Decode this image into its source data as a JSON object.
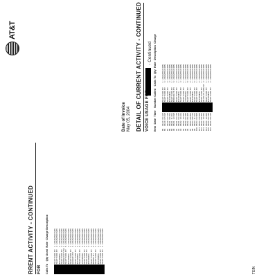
{
  "brand": {
    "name": "AT&T"
  },
  "invoice": {
    "date_label": "Date of Invoice",
    "date_value": "May 05, 2004"
  },
  "customer": {
    "name_fragment": "TEIN"
  },
  "sections": {
    "left_title": "RRENT ACTIVITY - CONTINUED",
    "right_title": "DETAIL OF CURRENT ACTIVITY - CONTINUED",
    "voice_title": "VOICE USAGE FOR",
    "continued": "- Continued",
    "voice_left_fragment": "FOR"
  },
  "headers": {
    "calls_to": "Calls To",
    "qty": "Qty",
    "used": "Used",
    "rate": "Rate",
    "charge": "Charge",
    "description": "Description",
    "item": "Item",
    "date": "Date",
    "time": "Time",
    "number_called": "Number Called"
  },
  "right_rows": [
    [
      "85",
      "04/30",
      "06:32P",
      "NEW YORK NY",
      "1",
      "UNLIMITED MIN"
    ],
    [
      "86",
      "04/30",
      "07:01P",
      "NEW YORK NY",
      "4",
      "UNLIMITED MIN"
    ],
    [
      "87",
      "04/30",
      "07:12P",
      "NEW YORK NY",
      "2",
      "UNLIMITED MIN"
    ],
    [
      "88",
      "05/01",
      "09:15A",
      "INCOMING",
      "3",
      "UNLIMITED MIN"
    ],
    [
      "89",
      "05/01",
      "11:40A",
      "NEW YORK NY",
      "1",
      "UNLIMITED MIN"
    ],
    [
      "90",
      "05/01",
      "12:03P",
      "BROOKLYN NY",
      "6",
      "UNLIMITED MIN"
    ],
    [
      "91",
      "05/01",
      "01:27P",
      "NEW YORK NY",
      "2",
      "UNLIMITED MIN"
    ],
    [
      "92",
      "05/01",
      "03:10P",
      "INCOMING",
      "1",
      "UNLIMITED MIN"
    ],
    [
      "93",
      "05/02",
      "10:22A",
      "NEW YORK NY",
      "3",
      "UNLIMITED MIN"
    ],
    [
      "94",
      "05/02",
      "12:45P",
      "NEW YORK NY",
      "1",
      "UNLIMITED MIN"
    ],
    [
      "95",
      "05/02",
      "02:18P",
      "VOICEMAIL",
      "1",
      "UNLIMITED MIN"
    ],
    [
      "96",
      "05/02",
      "05:30P",
      "NEW YORK NY",
      "8",
      "UNLIMITED MIN"
    ],
    [
      "97",
      "05/03",
      "08:05A",
      "NEW YORK NY",
      "2",
      "UNLIMITED MIN"
    ],
    [
      "98",
      "05/03",
      "09:41A",
      "INCOMING",
      "1",
      "UNLIMITED MIN"
    ],
    [
      "99",
      "05/03",
      "11:16A",
      "NEW YORK NY",
      "5",
      "UNLIMITED MIN"
    ],
    [
      "100",
      "05/03",
      "01:50P",
      "NEW YORK NY",
      "1",
      "UNLIMITED MIN"
    ],
    [
      "101",
      "05/03",
      "04:02P",
      "INCOMING",
      "2",
      "UNLIMITED MIN"
    ],
    [
      "102",
      "05/04",
      "09:30A",
      "NEW YORK NY",
      "1",
      "UNLIMITED MIN"
    ],
    [
      "103",
      "05/04",
      "10:48A",
      "WHITE PLAINS NY",
      "3",
      "UNLIMITED MIN"
    ],
    [
      "104",
      "05/04",
      "12:20P",
      "NEW YORK NY",
      "1",
      "UNLIMITED MIN"
    ],
    [
      "105",
      "05/04",
      "02:33P",
      "INCOMING",
      "4",
      "UNLIMITED MIN"
    ],
    [
      "106",
      "05/04",
      "06:12P",
      "NEW YORK NY",
      "2",
      "UNLIMITED MIN"
    ]
  ],
  "left_rows": [
    [
      "NEW YORK NY",
      "1",
      "UNLIMITED MIN"
    ],
    [
      "NEW YORK NY",
      "2",
      "UNLIMITED MIN"
    ],
    [
      "INCOMING",
      "1",
      "UNLIMITED MIN"
    ],
    [
      "NEW YORK NY",
      "3",
      "UNLIMITED MIN"
    ],
    [
      "JERSEYCITY NJ",
      "1",
      "UNLIMITED MIN"
    ],
    [
      "NEW YORK NY",
      "5",
      "UNLIMITED MIN"
    ],
    [
      "INCOMING",
      "2",
      "UNLIMITED MIN"
    ],
    [
      "NEW YORK NY",
      "1",
      "UNLIMITED MIN"
    ],
    [
      "QUEENS NY",
      "4",
      "UNLIMITED MIN"
    ],
    [
      "NEW YORK NY",
      "1",
      "UNLIMITED MIN"
    ],
    [
      "INCOMING",
      "1",
      "UNLIMITED MIN"
    ],
    [
      "NEW YORK NY",
      "6",
      "UNLIMITED MIN"
    ],
    [
      "VOICEMAIL",
      "1",
      "UNLIMITED MIN"
    ],
    [
      "NEW YORK NY",
      "2",
      "UNLIMITED MIN"
    ],
    [
      "NEW YORK NY",
      "1",
      "UNLIMITED MIN"
    ],
    [
      "INCOMING",
      "3",
      "UNLIMITED MIN"
    ],
    [
      "NEW YORK NY",
      "1",
      "UNLIMITED MIN"
    ],
    [
      "BRONX NY",
      "2",
      "UNLIMITED MIN"
    ],
    [
      "NEW YORK NY",
      "1",
      "UNLIMITED MIN"
    ],
    [
      "INCOMING",
      "1",
      "UNLIMITED MIN"
    ],
    [
      "NEW YORK NY",
      "7",
      "UNLIMITED MIN"
    ],
    [
      "NEW YORK NY",
      "1",
      "UNLIMITED MIN"
    ]
  ]
}
